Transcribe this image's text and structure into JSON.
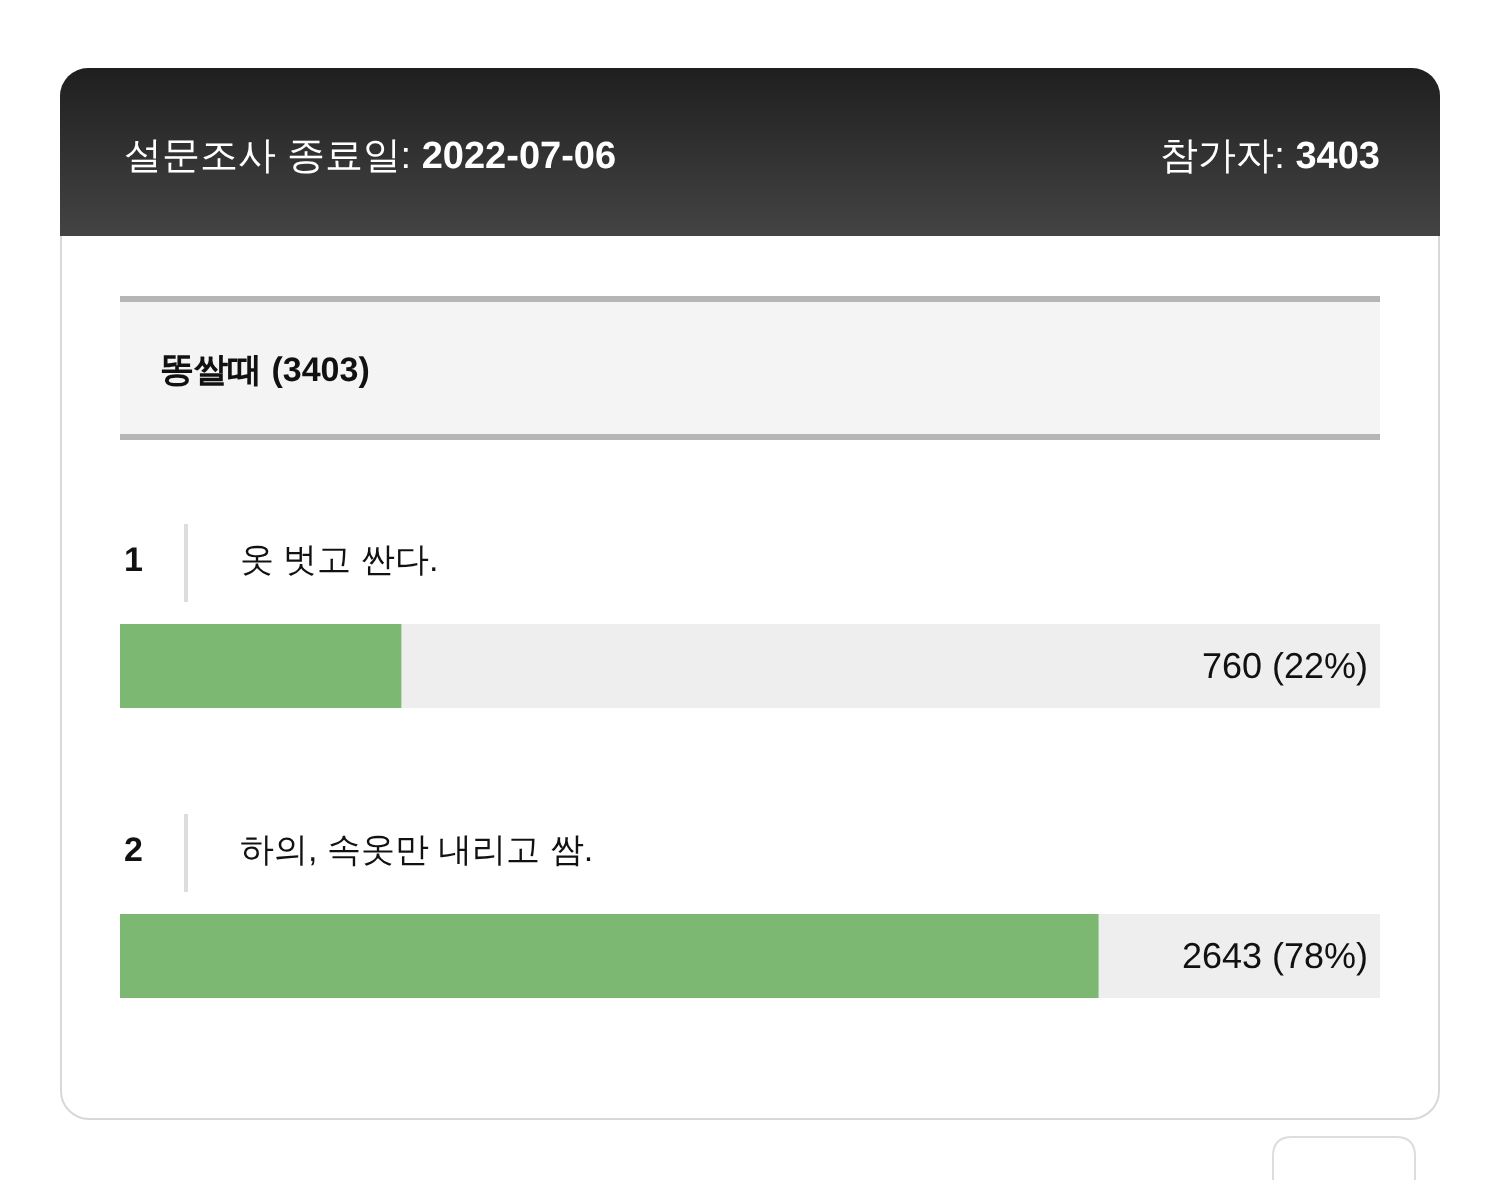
{
  "chart_data": {
    "type": "bar",
    "orientation": "horizontal",
    "title": "설문조사 종료일: 2022-07-06",
    "subtitle": "똥쌀때 (3403)",
    "annotations": [
      "참가자: 3403",
      "1",
      "2"
    ],
    "categories": [
      "옷 벗고 싼다.",
      "하의, 속옷만 내리고 쌈."
    ],
    "values": [
      760,
      2643
    ],
    "value_labels": [
      "760 (22%)",
      "2643 (78%)"
    ],
    "color": "#7cb872",
    "xlim": [
      0,
      3403
    ]
  }
}
